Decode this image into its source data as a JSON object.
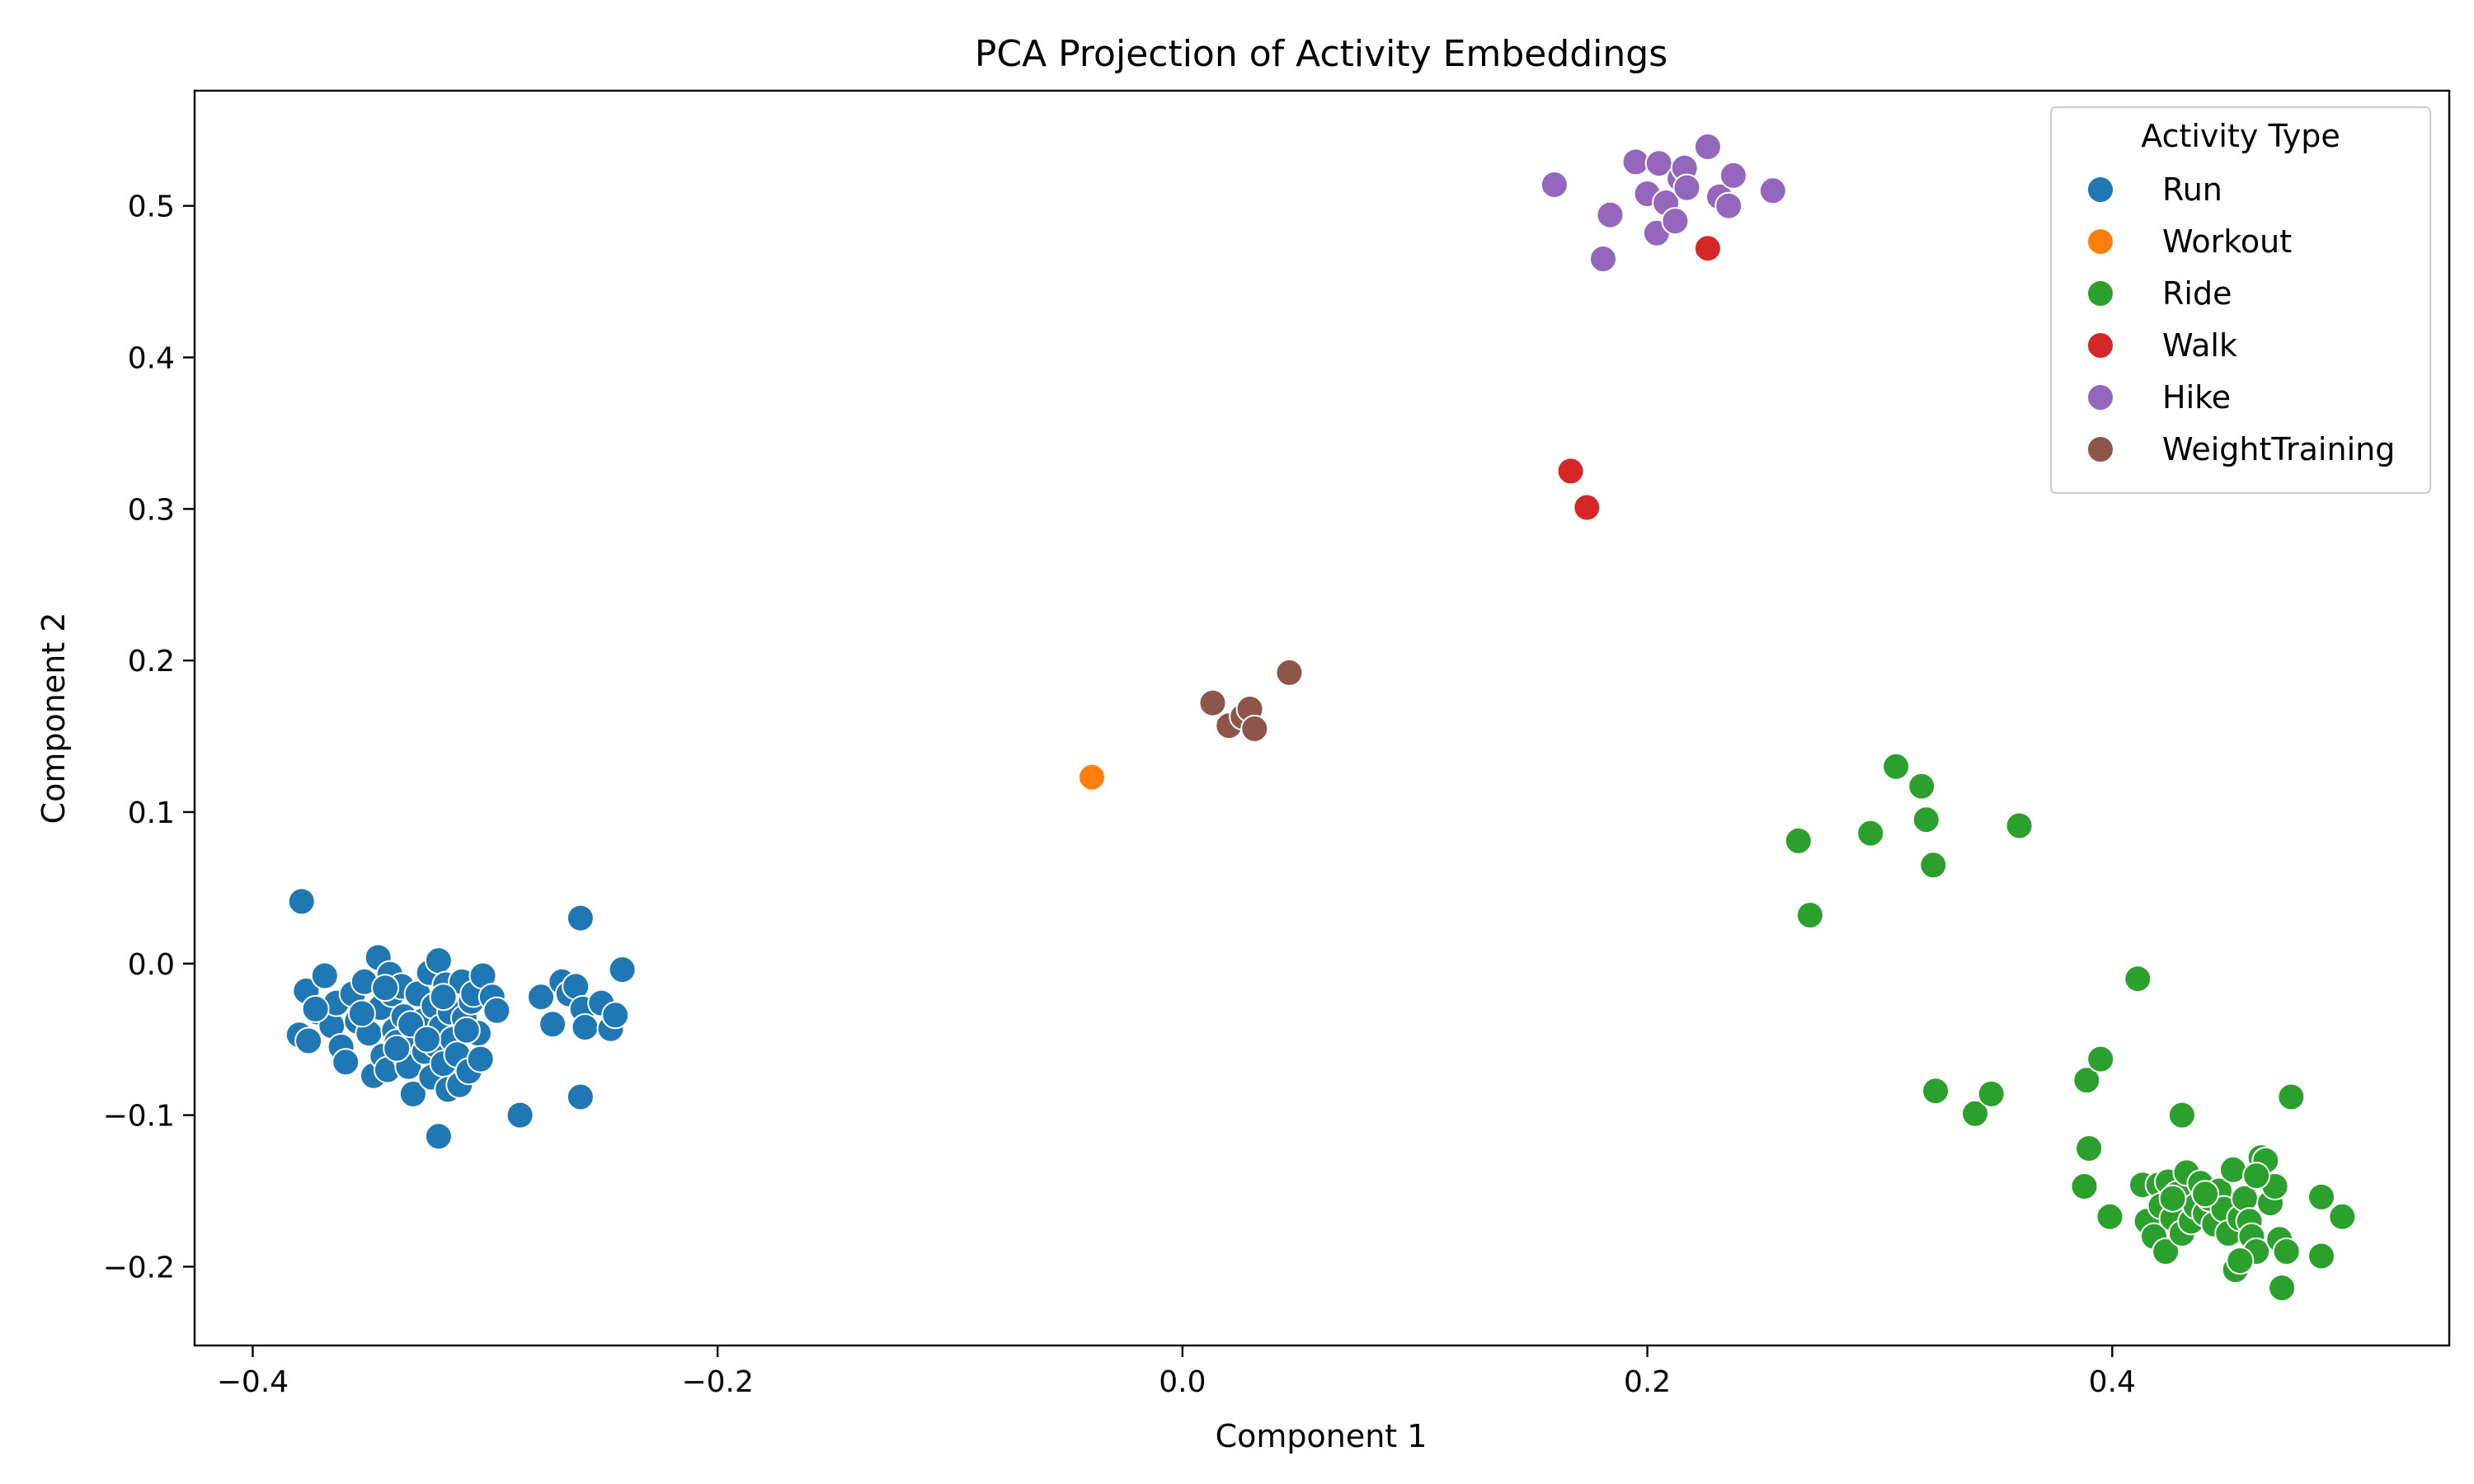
{
  "chart_data": {
    "type": "scatter",
    "title": "PCA Projection of Activity Embeddings",
    "xlabel": "Component 1",
    "ylabel": "Component 2",
    "xlim": [
      -0.425,
      0.545
    ],
    "ylim": [
      -0.252,
      0.576
    ],
    "xticks": [
      -0.4,
      -0.2,
      0.0,
      0.2,
      0.4
    ],
    "xtick_labels": [
      "−0.4",
      "−0.2",
      "0.0",
      "0.2",
      "0.4"
    ],
    "yticks": [
      -0.2,
      -0.1,
      0.0,
      0.1,
      0.2,
      0.3,
      0.4,
      0.5
    ],
    "ytick_labels": [
      "−0.2",
      "−0.1",
      "0.0",
      "0.1",
      "0.2",
      "0.3",
      "0.4",
      "0.5"
    ],
    "grid": false,
    "legend": {
      "title": "Activity Type",
      "placement": "top-right"
    },
    "series": [
      {
        "name": "Run",
        "color": "#1f77b4",
        "points": [
          [
            -0.38,
            -0.047
          ],
          [
            -0.377,
            -0.018
          ],
          [
            -0.376,
            -0.051
          ],
          [
            -0.372,
            -0.032
          ],
          [
            -0.369,
            -0.008
          ],
          [
            -0.366,
            -0.041
          ],
          [
            -0.364,
            -0.026
          ],
          [
            -0.362,
            -0.055
          ],
          [
            -0.36,
            -0.065
          ],
          [
            -0.357,
            -0.02
          ],
          [
            -0.355,
            -0.038
          ],
          [
            -0.352,
            -0.012
          ],
          [
            -0.35,
            -0.046
          ],
          [
            -0.348,
            -0.074
          ],
          [
            -0.346,
            0.004
          ],
          [
            -0.345,
            -0.029
          ],
          [
            -0.344,
            -0.061
          ],
          [
            -0.342,
            -0.07
          ],
          [
            -0.341,
            -0.007
          ],
          [
            -0.34,
            -0.02
          ],
          [
            -0.339,
            -0.044
          ],
          [
            -0.338,
            -0.052
          ],
          [
            -0.336,
            -0.015
          ],
          [
            -0.335,
            -0.035
          ],
          [
            -0.334,
            -0.062
          ],
          [
            -0.333,
            -0.068
          ],
          [
            -0.331,
            -0.086
          ],
          [
            -0.33,
            -0.048
          ],
          [
            -0.329,
            -0.02
          ],
          [
            -0.327,
            -0.038
          ],
          [
            -0.326,
            -0.058
          ],
          [
            -0.324,
            -0.006
          ],
          [
            -0.323,
            -0.075
          ],
          [
            -0.322,
            -0.028
          ],
          [
            -0.321,
            -0.054
          ],
          [
            -0.32,
            0.002
          ],
          [
            -0.319,
            -0.042
          ],
          [
            -0.318,
            -0.066
          ],
          [
            -0.317,
            -0.014
          ],
          [
            -0.316,
            -0.083
          ],
          [
            -0.315,
            -0.032
          ],
          [
            -0.314,
            -0.05
          ],
          [
            -0.312,
            -0.06
          ],
          [
            -0.311,
            -0.08
          ],
          [
            -0.31,
            -0.012
          ],
          [
            -0.309,
            -0.036
          ],
          [
            -0.307,
            -0.071
          ],
          [
            -0.306,
            -0.025
          ],
          [
            -0.305,
            -0.02
          ],
          [
            -0.303,
            -0.046
          ],
          [
            -0.302,
            -0.063
          ],
          [
            -0.301,
            -0.008
          ],
          [
            -0.297,
            -0.022
          ],
          [
            -0.295,
            -0.031
          ],
          [
            -0.379,
            0.041
          ],
          [
            -0.32,
            -0.114
          ],
          [
            -0.285,
            -0.1
          ],
          [
            -0.276,
            -0.022
          ],
          [
            -0.271,
            -0.04
          ],
          [
            -0.267,
            -0.012
          ],
          [
            -0.264,
            -0.02
          ],
          [
            -0.261,
            -0.015
          ],
          [
            -0.259,
            0.03
          ],
          [
            -0.259,
            -0.088
          ],
          [
            -0.258,
            -0.03
          ],
          [
            -0.257,
            -0.042
          ],
          [
            -0.25,
            -0.026
          ],
          [
            -0.246,
            -0.043
          ],
          [
            -0.244,
            -0.034
          ],
          [
            -0.241,
            -0.004
          ],
          [
            -0.373,
            -0.03
          ],
          [
            -0.353,
            -0.033
          ],
          [
            -0.343,
            -0.016
          ],
          [
            -0.332,
            -0.04
          ],
          [
            -0.325,
            -0.05
          ],
          [
            -0.318,
            -0.022
          ],
          [
            -0.308,
            -0.044
          ],
          [
            -0.338,
            -0.056
          ]
        ]
      },
      {
        "name": "Workout",
        "color": "#ff7f0e",
        "points": [
          [
            -0.039,
            0.123
          ]
        ]
      },
      {
        "name": "Ride",
        "color": "#2ca02c",
        "points": [
          [
            0.265,
            0.081
          ],
          [
            0.27,
            0.032
          ],
          [
            0.296,
            0.086
          ],
          [
            0.307,
            0.13
          ],
          [
            0.318,
            0.117
          ],
          [
            0.32,
            0.095
          ],
          [
            0.323,
            0.065
          ],
          [
            0.36,
            0.091
          ],
          [
            0.411,
            -0.01
          ],
          [
            0.324,
            -0.084
          ],
          [
            0.341,
            -0.099
          ],
          [
            0.348,
            -0.086
          ],
          [
            0.389,
            -0.077
          ],
          [
            0.395,
            -0.063
          ],
          [
            0.477,
            -0.088
          ],
          [
            0.43,
            -0.1
          ],
          [
            0.39,
            -0.122
          ],
          [
            0.388,
            -0.147
          ],
          [
            0.399,
            -0.167
          ],
          [
            0.413,
            -0.146
          ],
          [
            0.415,
            -0.17
          ],
          [
            0.418,
            -0.18
          ],
          [
            0.42,
            -0.146
          ],
          [
            0.421,
            -0.16
          ],
          [
            0.423,
            -0.19
          ],
          [
            0.424,
            -0.144
          ],
          [
            0.426,
            -0.168
          ],
          [
            0.428,
            -0.152
          ],
          [
            0.43,
            -0.178
          ],
          [
            0.432,
            -0.138
          ],
          [
            0.434,
            -0.17
          ],
          [
            0.436,
            -0.16
          ],
          [
            0.438,
            -0.145
          ],
          [
            0.44,
            -0.165
          ],
          [
            0.442,
            -0.155
          ],
          [
            0.444,
            -0.172
          ],
          [
            0.446,
            -0.15
          ],
          [
            0.448,
            -0.162
          ],
          [
            0.45,
            -0.178
          ],
          [
            0.452,
            -0.136
          ],
          [
            0.453,
            -0.202
          ],
          [
            0.455,
            -0.168
          ],
          [
            0.457,
            -0.155
          ],
          [
            0.459,
            -0.17
          ],
          [
            0.46,
            -0.18
          ],
          [
            0.462,
            -0.19
          ],
          [
            0.464,
            -0.128
          ],
          [
            0.466,
            -0.13
          ],
          [
            0.468,
            -0.158
          ],
          [
            0.47,
            -0.147
          ],
          [
            0.472,
            -0.182
          ],
          [
            0.473,
            -0.214
          ],
          [
            0.475,
            -0.19
          ],
          [
            0.49,
            -0.154
          ],
          [
            0.49,
            -0.193
          ],
          [
            0.499,
            -0.167
          ],
          [
            0.455,
            -0.196
          ],
          [
            0.44,
            -0.152
          ],
          [
            0.426,
            -0.155
          ],
          [
            0.462,
            -0.14
          ]
        ]
      },
      {
        "name": "Walk",
        "color": "#d62728",
        "points": [
          [
            0.167,
            0.325
          ],
          [
            0.174,
            0.301
          ],
          [
            0.226,
            0.472
          ]
        ]
      },
      {
        "name": "Hike",
        "color": "#9467bd",
        "points": [
          [
            0.16,
            0.514
          ],
          [
            0.181,
            0.465
          ],
          [
            0.184,
            0.494
          ],
          [
            0.195,
            0.529
          ],
          [
            0.2,
            0.508
          ],
          [
            0.204,
            0.482
          ],
          [
            0.205,
            0.528
          ],
          [
            0.208,
            0.502
          ],
          [
            0.212,
            0.49
          ],
          [
            0.214,
            0.518
          ],
          [
            0.216,
            0.525
          ],
          [
            0.217,
            0.512
          ],
          [
            0.226,
            0.539
          ],
          [
            0.231,
            0.506
          ],
          [
            0.235,
            0.5
          ],
          [
            0.237,
            0.52
          ],
          [
            0.254,
            0.51
          ]
        ]
      },
      {
        "name": "WeightTraining",
        "color": "#8c564b",
        "points": [
          [
            0.013,
            0.172
          ],
          [
            0.02,
            0.157
          ],
          [
            0.026,
            0.163
          ],
          [
            0.029,
            0.168
          ],
          [
            0.031,
            0.155
          ],
          [
            0.046,
            0.192
          ]
        ]
      }
    ]
  }
}
